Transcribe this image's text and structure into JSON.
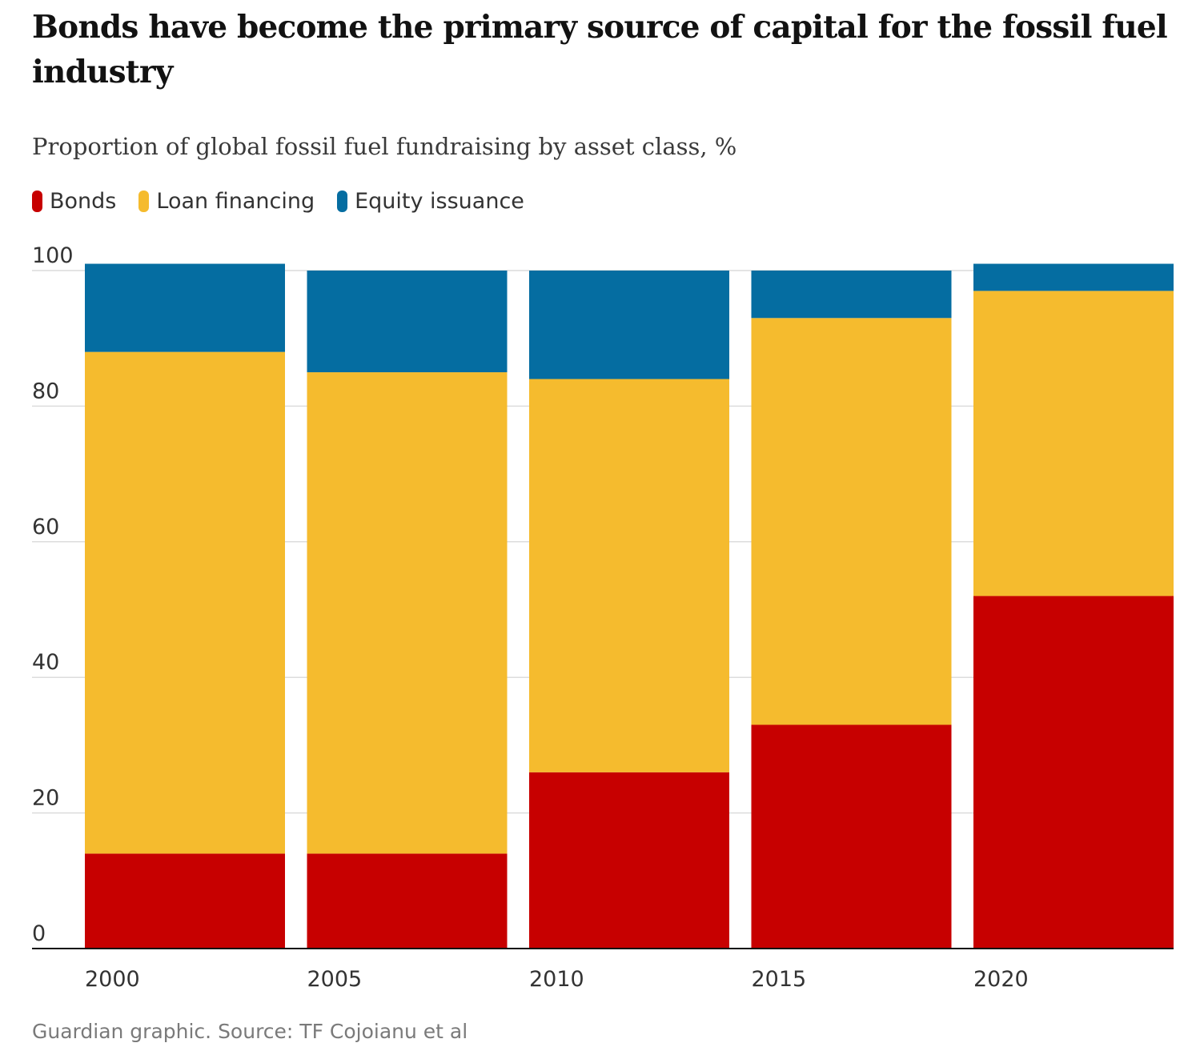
{
  "title": "Bonds have become the primary source of capital for the fossil fuel industry",
  "subtitle": "Proportion of global fossil fuel fundraising by asset class, %",
  "legend": [
    {
      "label": "Bonds",
      "color": "#c70000"
    },
    {
      "label": "Loan financing",
      "color": "#f5bb2e"
    },
    {
      "label": "Equity issuance",
      "color": "#056da1"
    }
  ],
  "source": "Guardian graphic. Source: TF Cojoianu et al",
  "chart_data": {
    "type": "bar",
    "stacked": true,
    "categories": [
      "2000",
      "2005",
      "2010",
      "2015",
      "2020"
    ],
    "series": [
      {
        "name": "Bonds",
        "color": "#c70000",
        "values": [
          14,
          14,
          26,
          33,
          52
        ]
      },
      {
        "name": "Loan financing",
        "color": "#f5bb2e",
        "values": [
          74,
          71,
          58,
          60,
          45
        ]
      },
      {
        "name": "Equity issuance",
        "color": "#056da1",
        "values": [
          13,
          15,
          16,
          7,
          4
        ]
      }
    ],
    "ylim": [
      0,
      100
    ],
    "yticks": [
      0,
      20,
      40,
      60,
      80,
      100
    ],
    "grid": true
  }
}
